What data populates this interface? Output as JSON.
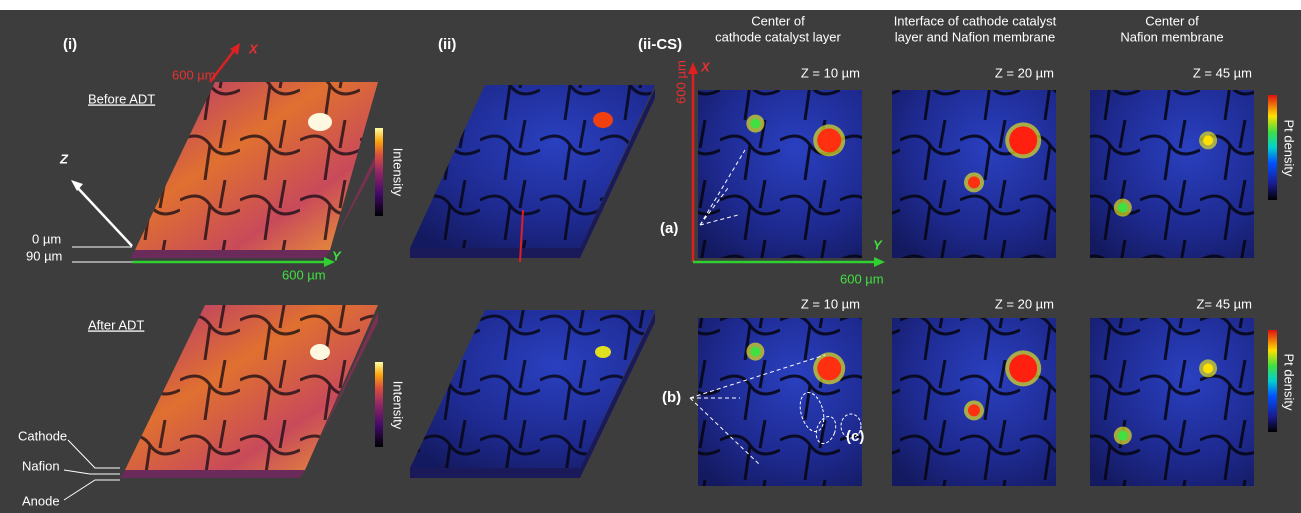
{
  "panels": {
    "i": "(i)",
    "ii": "(ii)",
    "ii_cs": "(ii-CS)"
  },
  "rows": {
    "before": "Before ADT",
    "after": "After ADT"
  },
  "axes_3d": {
    "x": "X",
    "x_len": "600 µm",
    "z": "Z",
    "z_top": "0 µm",
    "z_bottom": "90 µm",
    "y": "Y",
    "y_len": "600 µm"
  },
  "colorbars": {
    "intensity": "Intensity",
    "pt_density": "Pt density"
  },
  "headers": [
    [
      "Center of",
      "cathode catalyst layer"
    ],
    [
      "Interface of cathode catalyst",
      "layer and Nafion membrane"
    ],
    [
      "Center of",
      "Nafion membrane"
    ]
  ],
  "depths": {
    "before": [
      "Z = 10 µm",
      "Z = 20 µm",
      "Z = 45 µm"
    ],
    "after": [
      "Z = 10 µm",
      "Z = 20 µm",
      "Z= 45 µm"
    ]
  },
  "axes_cs": {
    "x": "X",
    "x_len": "600 µm",
    "y": "Y",
    "y_len": "600 µm"
  },
  "annotations": {
    "a": "(a)",
    "b": "(b)",
    "c": "(c)"
  },
  "layers": [
    "Cathode",
    "Nafion",
    "Anode"
  ]
}
